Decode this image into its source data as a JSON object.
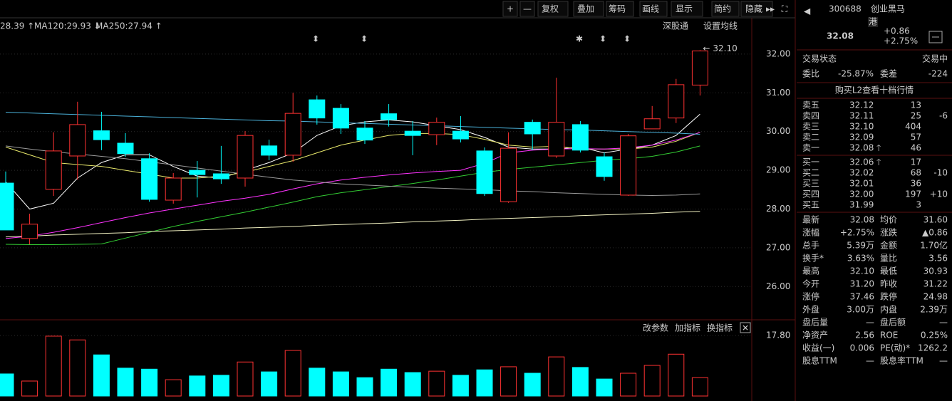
{
  "toolbar": {
    "buttons": [
      "+",
      "—",
      "复权",
      "叠加",
      "筹码",
      "画线",
      "显示",
      "简约",
      "隐藏"
    ]
  },
  "ma_legend": [
    "28.39 ↑",
    "MA120:29.93 ↓",
    "MA250:27.94 ↑"
  ],
  "chart_links": [
    "深股通",
    "设置均线"
  ],
  "indicator_links": [
    "改参数",
    "加指标",
    "换指标"
  ],
  "quote": {
    "code": "300688",
    "name": "创业黑马",
    "tag": "港",
    "price": "32.08",
    "change": "+0.86",
    "pct": "+2.75%",
    "status_label": "交易状态",
    "status": "交易中",
    "ratio": [
      "委比",
      "-25.87%",
      "委差",
      "-224"
    ],
    "l2": "购买L2查看十档行情",
    "asks": [
      [
        "卖五",
        "32.12",
        "13",
        ""
      ],
      [
        "卖四",
        "32.11",
        "25",
        "-6"
      ],
      [
        "卖三",
        "32.10",
        "404",
        ""
      ],
      [
        "卖二",
        "32.09",
        "57",
        ""
      ],
      [
        "卖一",
        "32.08",
        "46",
        ""
      ]
    ],
    "bids": [
      [
        "买一",
        "32.06",
        "17",
        ""
      ],
      [
        "买二",
        "32.02",
        "68",
        "-10"
      ],
      [
        "买三",
        "32.01",
        "36",
        ""
      ],
      [
        "买四",
        "32.00",
        "197",
        "+10"
      ],
      [
        "买五",
        "31.99",
        "3",
        ""
      ]
    ],
    "stats": [
      [
        "最新",
        "32.08",
        "均价",
        "31.60"
      ],
      [
        "涨幅",
        "+2.75%",
        "涨跌",
        "▲0.86"
      ],
      [
        "总手",
        "5.39万",
        "金额",
        "1.70亿"
      ],
      [
        "换手*",
        "3.63%",
        "量比",
        "3.56"
      ],
      [
        "最高",
        "32.10",
        "最低",
        "30.93"
      ],
      [
        "今开",
        "31.20",
        "昨收",
        "31.22"
      ],
      [
        "涨停",
        "37.46",
        "跌停",
        "24.98"
      ],
      [
        "外盘",
        "3.00万",
        "内盘",
        "2.39万"
      ],
      [
        "盘后量",
        "—",
        "盘后额",
        "—"
      ],
      [
        "净资产",
        "2.56",
        "ROE",
        "0.25%"
      ],
      [
        "收益(一)",
        "0.006",
        "PE(动)*",
        "1262.2"
      ],
      [
        "股息TTM",
        "—",
        "股息率TTM",
        "—"
      ]
    ]
  },
  "chart_data": [
    {
      "type": "candlestick",
      "up_color": "#ff3232",
      "down_color": "#00ffff",
      "annotation": "32.10",
      "open": [
        28.67,
        27.24,
        28.51,
        29.37,
        30.02,
        29.7,
        29.3,
        28.23,
        29.0,
        28.91,
        28.8,
        29.63,
        29.39,
        30.82,
        30.6,
        30.09,
        30.46,
        30.01,
        29.92,
        30.01,
        29.5,
        28.19,
        30.24,
        29.37,
        30.18,
        29.35,
        28.36,
        30.07,
        30.35,
        31.2
      ],
      "close": [
        27.46,
        27.61,
        29.5,
        30.18,
        29.79,
        29.43,
        28.25,
        28.8,
        28.89,
        28.78,
        29.9,
        29.39,
        30.47,
        30.35,
        30.09,
        29.78,
        30.31,
        29.9,
        30.24,
        29.81,
        28.4,
        29.57,
        29.94,
        30.24,
        29.52,
        28.84,
        29.89,
        30.33,
        31.21,
        32.08
      ],
      "high": [
        28.97,
        27.88,
        29.98,
        30.77,
        30.51,
        29.96,
        29.44,
        28.93,
        29.24,
        29.63,
        30.01,
        29.79,
        31.0,
        30.93,
        30.71,
        30.27,
        30.71,
        30.27,
        30.36,
        30.4,
        29.59,
        29.98,
        30.31,
        31.39,
        30.27,
        29.46,
        29.94,
        30.66,
        31.36,
        32.1
      ],
      "low": [
        27.46,
        27.09,
        28.34,
        28.76,
        29.52,
        29.35,
        28.19,
        28.14,
        28.3,
        28.65,
        28.58,
        29.26,
        29.22,
        30.18,
        29.94,
        29.68,
        30.13,
        29.39,
        29.65,
        29.72,
        28.34,
        28.16,
        29.52,
        29.32,
        29.46,
        28.73,
        28.34,
        30.07,
        30.22,
        30.93
      ],
      "series": [
        {
          "color": "#ffffff",
          "values": [
            28.7,
            28.0,
            28.15,
            28.8,
            29.2,
            29.4,
            29.4,
            29.1,
            28.85,
            28.8,
            29.0,
            29.2,
            29.45,
            29.9,
            30.15,
            30.25,
            30.3,
            30.25,
            30.15,
            30.05,
            29.85,
            29.6,
            29.55,
            29.55,
            29.6,
            29.45,
            29.55,
            29.65,
            29.9,
            30.45
          ]
        },
        {
          "color": "#e8e86a",
          "values": [
            29.6,
            29.4,
            29.2,
            29.15,
            29.1,
            29.0,
            28.9,
            28.8,
            28.8,
            28.85,
            28.95,
            29.1,
            29.25,
            29.45,
            29.65,
            29.78,
            29.9,
            29.95,
            29.95,
            29.92,
            29.8,
            29.65,
            29.6,
            29.62,
            29.55,
            29.55,
            29.55,
            29.6,
            29.75,
            29.98
          ]
        },
        {
          "color": "#ff33ff",
          "values": [
            27.24,
            27.3,
            27.4,
            27.52,
            27.65,
            27.78,
            27.9,
            28.0,
            28.1,
            28.2,
            28.28,
            28.38,
            28.52,
            28.65,
            28.75,
            28.82,
            28.88,
            28.93,
            28.97,
            29.0,
            29.18,
            29.45,
            29.52,
            29.55,
            29.56,
            29.55,
            29.58,
            29.65,
            29.78,
            29.98
          ]
        },
        {
          "color": "#33cc33",
          "values": [
            27.09,
            27.08,
            27.08,
            27.09,
            27.1,
            27.25,
            27.4,
            27.55,
            27.68,
            27.8,
            27.92,
            28.05,
            28.18,
            28.32,
            28.42,
            28.5,
            28.58,
            28.66,
            28.75,
            28.85,
            28.95,
            29.02,
            29.08,
            29.14,
            29.2,
            29.26,
            29.3,
            29.36,
            29.47,
            29.63
          ]
        },
        {
          "color": "#9a9a9a",
          "values": [
            29.63,
            29.55,
            29.48,
            29.42,
            29.36,
            29.3,
            29.22,
            29.14,
            29.06,
            28.98,
            28.9,
            28.82,
            28.75,
            28.7,
            28.65,
            28.62,
            28.59,
            28.56,
            28.54,
            28.52,
            28.5,
            28.47,
            28.45,
            28.42,
            28.4,
            28.38,
            28.36,
            28.35,
            28.36,
            28.39
          ]
        },
        {
          "color": "#4ab0d8",
          "values": [
            30.5,
            30.48,
            30.46,
            30.44,
            30.42,
            30.4,
            30.38,
            30.36,
            30.34,
            30.32,
            30.3,
            30.28,
            30.27,
            30.25,
            30.23,
            30.21,
            30.19,
            30.17,
            30.15,
            30.13,
            30.11,
            30.09,
            30.07,
            30.05,
            30.04,
            30.02,
            30.0,
            29.98,
            29.96,
            29.93
          ]
        },
        {
          "color": "#f0f0c0",
          "values": [
            27.28,
            27.3,
            27.33,
            27.35,
            27.37,
            27.39,
            27.42,
            27.44,
            27.46,
            27.48,
            27.51,
            27.53,
            27.55,
            27.58,
            27.6,
            27.62,
            27.64,
            27.67,
            27.69,
            27.71,
            27.74,
            27.76,
            27.78,
            27.8,
            27.83,
            27.85,
            27.87,
            27.89,
            27.92,
            27.94
          ]
        }
      ],
      "ylim": [
        25.16,
        32.55
      ],
      "yticks": [
        {
          "value": 32,
          "label": "32.00"
        },
        {
          "value": 31,
          "label": "31.00"
        },
        {
          "value": 30,
          "label": "30.00"
        },
        {
          "value": 29,
          "label": "29.00"
        },
        {
          "value": 28,
          "label": "28.00"
        },
        {
          "value": 27,
          "label": "27.00"
        },
        {
          "value": 26,
          "label": "26.00"
        }
      ],
      "grid": true
    },
    {
      "type": "bar",
      "values": [
        6.5,
        4.4,
        17.6,
        16.5,
        12.1,
        8.2,
        7.9,
        4.8,
        5.9,
        6.1,
        10.0,
        7.1,
        13.4,
        8.2,
        7.1,
        5.4,
        7.9,
        6.9,
        7.3,
        6.1,
        7.7,
        8.6,
        6.7,
        11.5,
        8.4,
        5.0,
        6.7,
        9.0,
        12.3,
        5.39
      ],
      "ylim": [
        0,
        22.2
      ],
      "yticks": [
        {
          "value": 17.8,
          "label": "17.80"
        }
      ]
    }
  ]
}
